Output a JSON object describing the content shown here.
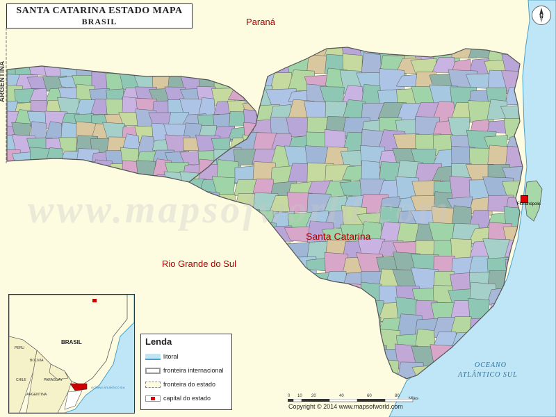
{
  "title": {
    "line1": "SANTA CATARINA ESTADO MAPA",
    "line2": "BRASIL"
  },
  "labels": {
    "parana": "Paraná",
    "argentina": "ARGENTINA",
    "santa_catarina": "Santa Catarina",
    "rio_grande_do_sul": "Rio Grande do Sul",
    "oceano_line1": "OCEANO",
    "oceano_line2": "ATLÂNTICO SUL",
    "capital": "Florianópolis",
    "watermark": "www.mapsofworld.com"
  },
  "legend": {
    "title": "Lenda",
    "items": [
      {
        "label": "litoral"
      },
      {
        "label": "fronteira internacional"
      },
      {
        "label": "fronteira do estado"
      },
      {
        "label": "capital do estado"
      }
    ]
  },
  "inset": {
    "brasil": "BRASIL",
    "peru": "PERU",
    "bolivia": "BOLIVIA",
    "chile": "CHILE",
    "paraguay": "PARAGUAY",
    "argentina": "ARGENTINA",
    "oceano": "OCEANO ATLÂNTICO SUL"
  },
  "scale": {
    "ticks": [
      "0",
      "10",
      "20",
      "40",
      "60",
      "80"
    ],
    "unit": "Miles"
  },
  "copyright": "Copyright © 2014 www.mapsofworld.com",
  "colors": {
    "land_outside": "#fdfbe0",
    "ocean": "#bfe6f7",
    "capital_marker": "#e00000",
    "state_label": "#b00000",
    "highlight": "#cc0000"
  },
  "icons": [
    "compass-icon"
  ]
}
